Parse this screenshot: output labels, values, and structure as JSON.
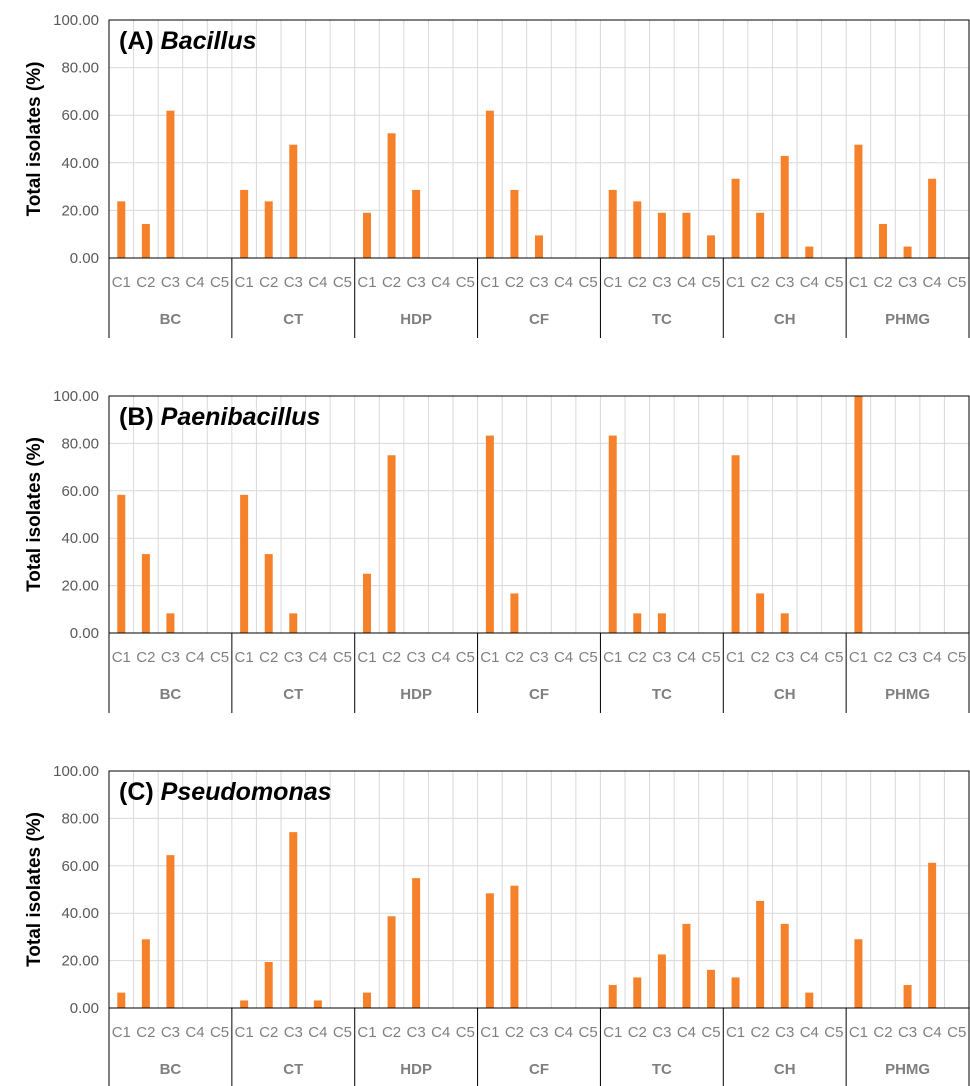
{
  "colors": {
    "bar": "#f5812b",
    "grid": "#d9d9d9",
    "axis": "#000000",
    "tick_text": "#7f7f7f"
  },
  "chart_data": [
    {
      "type": "bar",
      "title_prefix": "(A)",
      "title_genus": "Bacillus",
      "ylabel": "Total isolates (%)",
      "ylim": [
        0,
        100
      ],
      "yticks": [
        "0.00",
        "20.00",
        "40.00",
        "60.00",
        "80.00",
        "100.00"
      ],
      "grid": true,
      "subcategories": [
        "C1",
        "C2",
        "C3",
        "C4",
        "C5"
      ],
      "groups": [
        "BC",
        "CT",
        "HDP",
        "CF",
        "TC",
        "CH",
        "PHMG"
      ],
      "values": [
        [
          23.8,
          14.3,
          61.9,
          0,
          0
        ],
        [
          28.6,
          23.8,
          47.6,
          0,
          0
        ],
        [
          19.0,
          52.4,
          28.6,
          0,
          0
        ],
        [
          61.9,
          28.6,
          9.5,
          0,
          0
        ],
        [
          28.6,
          23.8,
          19.0,
          19.0,
          9.5
        ],
        [
          33.3,
          19.0,
          42.9,
          4.8,
          0
        ],
        [
          47.6,
          14.3,
          4.8,
          33.3,
          0
        ]
      ]
    },
    {
      "type": "bar",
      "title_prefix": "(B)",
      "title_genus": "Paenibacillus",
      "ylabel": "Total isolates (%)",
      "ylim": [
        0,
        100
      ],
      "yticks": [
        "0.00",
        "20.00",
        "40.00",
        "60.00",
        "80.00",
        "100.00"
      ],
      "grid": true,
      "subcategories": [
        "C1",
        "C2",
        "C3",
        "C4",
        "C5"
      ],
      "groups": [
        "BC",
        "CT",
        "HDP",
        "CF",
        "TC",
        "CH",
        "PHMG"
      ],
      "values": [
        [
          58.3,
          33.3,
          8.3,
          0,
          0
        ],
        [
          58.3,
          33.3,
          8.3,
          0,
          0
        ],
        [
          25.0,
          75.0,
          0,
          0,
          0
        ],
        [
          83.3,
          16.7,
          0,
          0,
          0
        ],
        [
          83.3,
          8.3,
          8.3,
          0,
          0
        ],
        [
          75.0,
          16.7,
          8.3,
          0,
          0
        ],
        [
          100.0,
          0,
          0,
          0,
          0
        ]
      ]
    },
    {
      "type": "bar",
      "title_prefix": "(C)",
      "title_genus": "Pseudomonas",
      "ylabel": "Total isolates (%)",
      "ylim": [
        0,
        100
      ],
      "yticks": [
        "0.00",
        "20.00",
        "40.00",
        "60.00",
        "80.00",
        "100.00"
      ],
      "grid": true,
      "subcategories": [
        "C1",
        "C2",
        "C3",
        "C4",
        "C5"
      ],
      "groups": [
        "BC",
        "CT",
        "HDP",
        "CF",
        "TC",
        "CH",
        "PHMG"
      ],
      "values": [
        [
          6.5,
          29.0,
          64.5,
          0,
          0
        ],
        [
          3.2,
          19.4,
          74.2,
          3.2,
          0
        ],
        [
          6.5,
          38.7,
          54.8,
          0,
          0
        ],
        [
          48.4,
          51.6,
          0,
          0,
          0
        ],
        [
          9.7,
          12.9,
          22.6,
          35.5,
          16.1
        ],
        [
          12.9,
          45.2,
          35.5,
          6.5,
          0
        ],
        [
          29.0,
          0,
          9.7,
          61.3,
          0
        ]
      ]
    }
  ]
}
